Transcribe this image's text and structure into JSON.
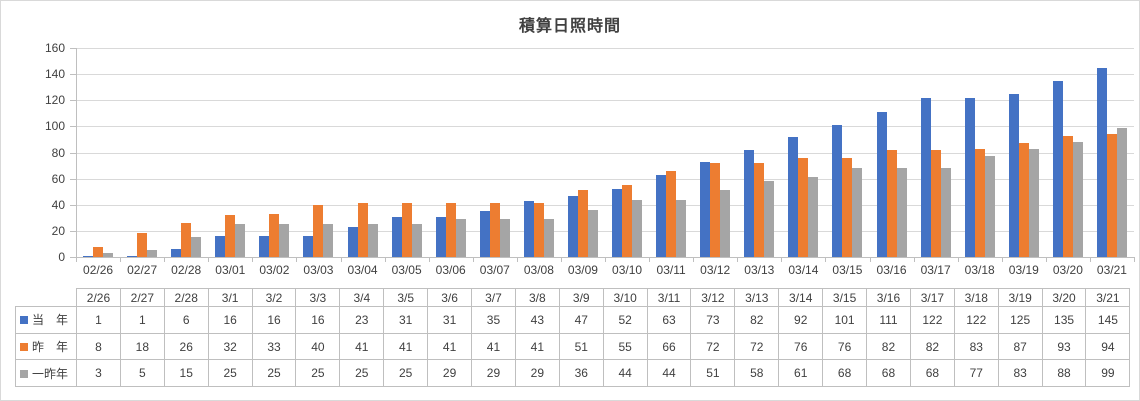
{
  "chart_data": {
    "type": "bar",
    "title": "積算日照時間",
    "x_axis_labels": [
      "02/26",
      "02/27",
      "02/28",
      "03/01",
      "03/02",
      "03/03",
      "03/04",
      "03/05",
      "03/06",
      "03/07",
      "03/08",
      "03/09",
      "03/10",
      "03/11",
      "03/12",
      "03/13",
      "03/14",
      "03/15",
      "03/16",
      "03/17",
      "03/18",
      "03/19",
      "03/20",
      "03/21"
    ],
    "table_headers": [
      "2/26",
      "2/27",
      "2/28",
      "3/1",
      "3/2",
      "3/3",
      "3/4",
      "3/5",
      "3/6",
      "3/7",
      "3/8",
      "3/9",
      "3/10",
      "3/11",
      "3/12",
      "3/13",
      "3/14",
      "3/15",
      "3/16",
      "3/17",
      "3/18",
      "3/19",
      "3/20",
      "3/21"
    ],
    "series": [
      {
        "name": "当　年",
        "color": "#4472C4",
        "values": [
          1,
          1,
          6,
          16,
          16,
          16,
          23,
          31,
          31,
          35,
          43,
          47,
          52,
          63,
          73,
          82,
          92,
          101,
          111,
          122,
          122,
          125,
          135,
          145
        ]
      },
      {
        "name": "昨　年",
        "color": "#ED7D31",
        "values": [
          8,
          18,
          26,
          32,
          33,
          40,
          41,
          41,
          41,
          41,
          41,
          51,
          55,
          66,
          72,
          72,
          76,
          76,
          82,
          82,
          83,
          87,
          93,
          94
        ]
      },
      {
        "name": "一昨年",
        "color": "#A5A5A5",
        "values": [
          3,
          5,
          15,
          25,
          25,
          25,
          25,
          25,
          29,
          29,
          29,
          36,
          44,
          44,
          51,
          58,
          61,
          68,
          68,
          68,
          77,
          83,
          88,
          99
        ]
      }
    ],
    "ylim": [
      0,
      160
    ],
    "ytick_step": 20,
    "yticks": [
      0,
      20,
      40,
      60,
      80,
      100,
      120,
      140,
      160
    ],
    "grid": true,
    "legend_position": "data-table-row-keys"
  },
  "style": {
    "background": "#FFFFFF",
    "frame_border_color": "#D9D9D9",
    "gridline_color": "#D9D9D9",
    "axis_color": "#BFBFBF",
    "table_border_color": "#BFBFBF",
    "text_color": "#404040",
    "title_color": "#404040"
  }
}
